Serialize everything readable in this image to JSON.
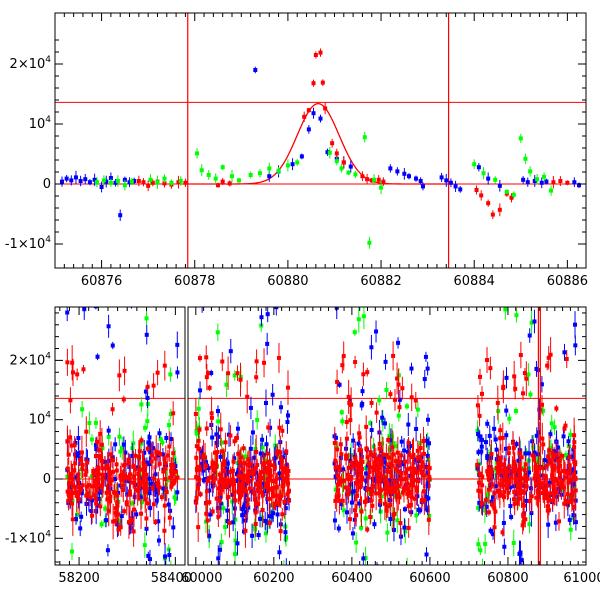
{
  "chart_data": [
    {
      "type": "scatter",
      "panel": "top",
      "title": "",
      "xlabel": "",
      "ylabel": "",
      "xlim": [
        60875,
        60886.4
      ],
      "ylim": [
        -14000,
        28500
      ],
      "x_ticks": [
        60876,
        60878,
        60880,
        60882,
        60884,
        60886
      ],
      "x_tick_labels": [
        "60876",
        "60878",
        "60880",
        "60882",
        "60884",
        "60886"
      ],
      "y_ticks": [
        -10000,
        0,
        10000,
        20000
      ],
      "y_tick_labels": [
        {
          "mantissa": "-1×10",
          "exp": "4"
        },
        {
          "mantissa": "0",
          "exp": ""
        },
        {
          "mantissa": "10",
          "exp": "4"
        },
        {
          "mantissa": "2×10",
          "exp": "4"
        }
      ],
      "hlines": [
        0,
        13600
      ],
      "vlines": [
        60877.85,
        60883.45
      ],
      "model": {
        "type": "gaussian",
        "center": 60880.65,
        "amplitude": 13400,
        "sigma": 0.45,
        "baseline": 0,
        "color": "#ff0000"
      },
      "series": [
        {
          "name": "blue",
          "color": "#0000ff",
          "points": [
            [
              60875.15,
              400
            ],
            [
              60875.25,
              900
            ],
            [
              60875.35,
              600
            ],
            [
              60875.45,
              1100
            ],
            [
              60875.55,
              500
            ],
            [
              60875.65,
              800
            ],
            [
              60875.75,
              300
            ],
            [
              60875.85,
              700
            ],
            [
              60876.0,
              -500
            ],
            [
              60876.1,
              400
            ],
            [
              60876.2,
              1000
            ],
            [
              60876.3,
              200
            ],
            [
              60876.4,
              -5200
            ],
            [
              60876.5,
              700
            ],
            [
              60876.6,
              300
            ],
            [
              60876.7,
              500
            ],
            [
              60879.3,
              19000
            ],
            [
              60879.6,
              1300
            ],
            [
              60879.8,
              2100
            ],
            [
              60880.1,
              3300
            ],
            [
              60880.3,
              4600
            ],
            [
              60880.45,
              9100
            ],
            [
              60880.55,
              11800
            ],
            [
              60880.7,
              10900
            ],
            [
              60880.85,
              5300
            ],
            [
              60881.05,
              4200
            ],
            [
              60881.2,
              3600
            ],
            [
              60881.35,
              2900
            ],
            [
              60882.2,
              2600
            ],
            [
              60882.35,
              2100
            ],
            [
              60882.5,
              1700
            ],
            [
              60882.6,
              1300
            ],
            [
              60882.75,
              900
            ],
            [
              60882.85,
              500
            ],
            [
              60882.9,
              -400
            ],
            [
              60883.3,
              1100
            ],
            [
              60883.4,
              600
            ],
            [
              60883.5,
              200
            ],
            [
              60883.6,
              -400
            ],
            [
              60883.7,
              -900
            ],
            [
              60884.1,
              2800
            ],
            [
              60884.3,
              900
            ],
            [
              60884.55,
              -300
            ],
            [
              60885.05,
              700
            ],
            [
              60885.15,
              300
            ],
            [
              60885.3,
              500
            ],
            [
              60885.45,
              200
            ],
            [
              60885.55,
              400
            ],
            [
              60886.15,
              300
            ],
            [
              60886.25,
              -200
            ]
          ]
        },
        {
          "name": "red",
          "color": "#ff0000",
          "points": [
            [
              60876.8,
              500
            ],
            [
              60876.9,
              300
            ],
            [
              60877.0,
              -300
            ],
            [
              60877.1,
              200
            ],
            [
              60877.2,
              400
            ],
            [
              60877.35,
              100
            ],
            [
              60877.5,
              -100
            ],
            [
              60877.65,
              300
            ],
            [
              60877.8,
              200
            ],
            [
              60878.5,
              -200
            ],
            [
              60878.6,
              400
            ],
            [
              60878.75,
              100
            ],
            [
              60880.35,
              11200
            ],
            [
              60880.45,
              12300
            ],
            [
              60880.55,
              16800
            ],
            [
              60880.6,
              21500
            ],
            [
              60880.7,
              21900
            ],
            [
              60880.75,
              16900
            ],
            [
              60880.8,
              12600
            ],
            [
              60880.95,
              6800
            ],
            [
              60881.05,
              5100
            ],
            [
              60881.2,
              3600
            ],
            [
              60881.6,
              1300
            ],
            [
              60881.7,
              800
            ],
            [
              60881.8,
              600
            ],
            [
              60881.95,
              700
            ],
            [
              60882.05,
              400
            ],
            [
              60884.05,
              -1000
            ],
            [
              60884.15,
              -1900
            ],
            [
              60884.3,
              -3200
            ],
            [
              60884.4,
              -5100
            ],
            [
              60884.55,
              -4300
            ],
            [
              60884.7,
              -1600
            ],
            [
              60884.8,
              -2300
            ],
            [
              60885.7,
              300
            ],
            [
              60885.85,
              500
            ],
            [
              60886.0,
              200
            ]
          ]
        },
        {
          "name": "green",
          "color": "#00ff00",
          "points": [
            [
              60875.9,
              300
            ],
            [
              60876.05,
              600
            ],
            [
              60876.2,
              200
            ],
            [
              60876.35,
              500
            ],
            [
              60876.5,
              -200
            ],
            [
              60876.65,
              400
            ],
            [
              60877.05,
              700
            ],
            [
              60877.2,
              300
            ],
            [
              60877.35,
              900
            ],
            [
              60877.5,
              200
            ],
            [
              60877.7,
              500
            ],
            [
              60878.05,
              5100
            ],
            [
              60878.15,
              2300
            ],
            [
              60878.3,
              1500
            ],
            [
              60878.45,
              900
            ],
            [
              60878.6,
              2800
            ],
            [
              60878.8,
              1300
            ],
            [
              60878.95,
              600
            ],
            [
              60879.2,
              1500
            ],
            [
              60879.4,
              1800
            ],
            [
              60879.6,
              2600
            ],
            [
              60879.8,
              2200
            ],
            [
              60880.0,
              3100
            ],
            [
              60880.2,
              3600
            ],
            [
              60880.9,
              5200
            ],
            [
              60881.05,
              3800
            ],
            [
              60881.15,
              2600
            ],
            [
              60881.3,
              1900
            ],
            [
              60881.45,
              1600
            ],
            [
              60881.65,
              7800
            ],
            [
              60881.75,
              -9800
            ],
            [
              60881.85,
              700
            ],
            [
              60882.0,
              -600
            ],
            [
              60884.0,
              3300
            ],
            [
              60884.2,
              1800
            ],
            [
              60884.45,
              700
            ],
            [
              60884.7,
              -1300
            ],
            [
              60884.85,
              -1800
            ],
            [
              60885.0,
              7600
            ],
            [
              60885.1,
              4200
            ],
            [
              60885.2,
              2100
            ],
            [
              60885.35,
              800
            ],
            [
              60885.5,
              1200
            ],
            [
              60885.65,
              -1100
            ]
          ]
        }
      ]
    },
    {
      "type": "scatter",
      "panel": "bottom",
      "title": "",
      "xlabel": "",
      "ylabel": "",
      "broken_x_axis": true,
      "x_segments": [
        {
          "xlim": [
            58150,
            58420
          ],
          "ticks": [
            58200,
            58400
          ],
          "tick_labels": [
            "58200",
            "58400"
          ]
        },
        {
          "xlim": [
            59980,
            61000
          ],
          "ticks": [
            60000,
            60200,
            60400,
            60600,
            60800,
            61000
          ],
          "tick_labels": [
            "60000",
            "60200",
            "60400",
            "60600",
            "60800",
            "61000"
          ]
        }
      ],
      "ylim": [
        -14500,
        29000
      ],
      "y_ticks": [
        -10000,
        0,
        10000,
        20000
      ],
      "y_tick_labels": [
        {
          "mantissa": "-1×10",
          "exp": "4"
        },
        {
          "mantissa": "0",
          "exp": ""
        },
        {
          "mantissa": "10",
          "exp": "4"
        },
        {
          "mantissa": "2×10",
          "exp": "4"
        }
      ],
      "hlines": [
        0,
        13600
      ],
      "vlines": [
        60878,
        60883
      ],
      "seasons": [
        {
          "range": [
            58175,
            58405
          ],
          "center": 58290
        },
        {
          "range": [
            60000,
            60240
          ],
          "center": 60110
        },
        {
          "range": [
            60355,
            60605
          ],
          "center": 60475
        },
        {
          "range": [
            60720,
            60975
          ],
          "center": 60850
        }
      ],
      "series": [
        {
          "name": "red",
          "color": "#ff0000",
          "core_sigma": 2800,
          "outlier_spread": 15000,
          "points_per_season": 230
        },
        {
          "name": "blue",
          "color": "#0000ff",
          "core_sigma": 4500,
          "outlier_spread": 26000,
          "points_per_season": 140
        },
        {
          "name": "green",
          "color": "#00ff00",
          "core_sigma": 6500,
          "outlier_spread": 28000,
          "points_per_season": 60
        }
      ]
    }
  ]
}
